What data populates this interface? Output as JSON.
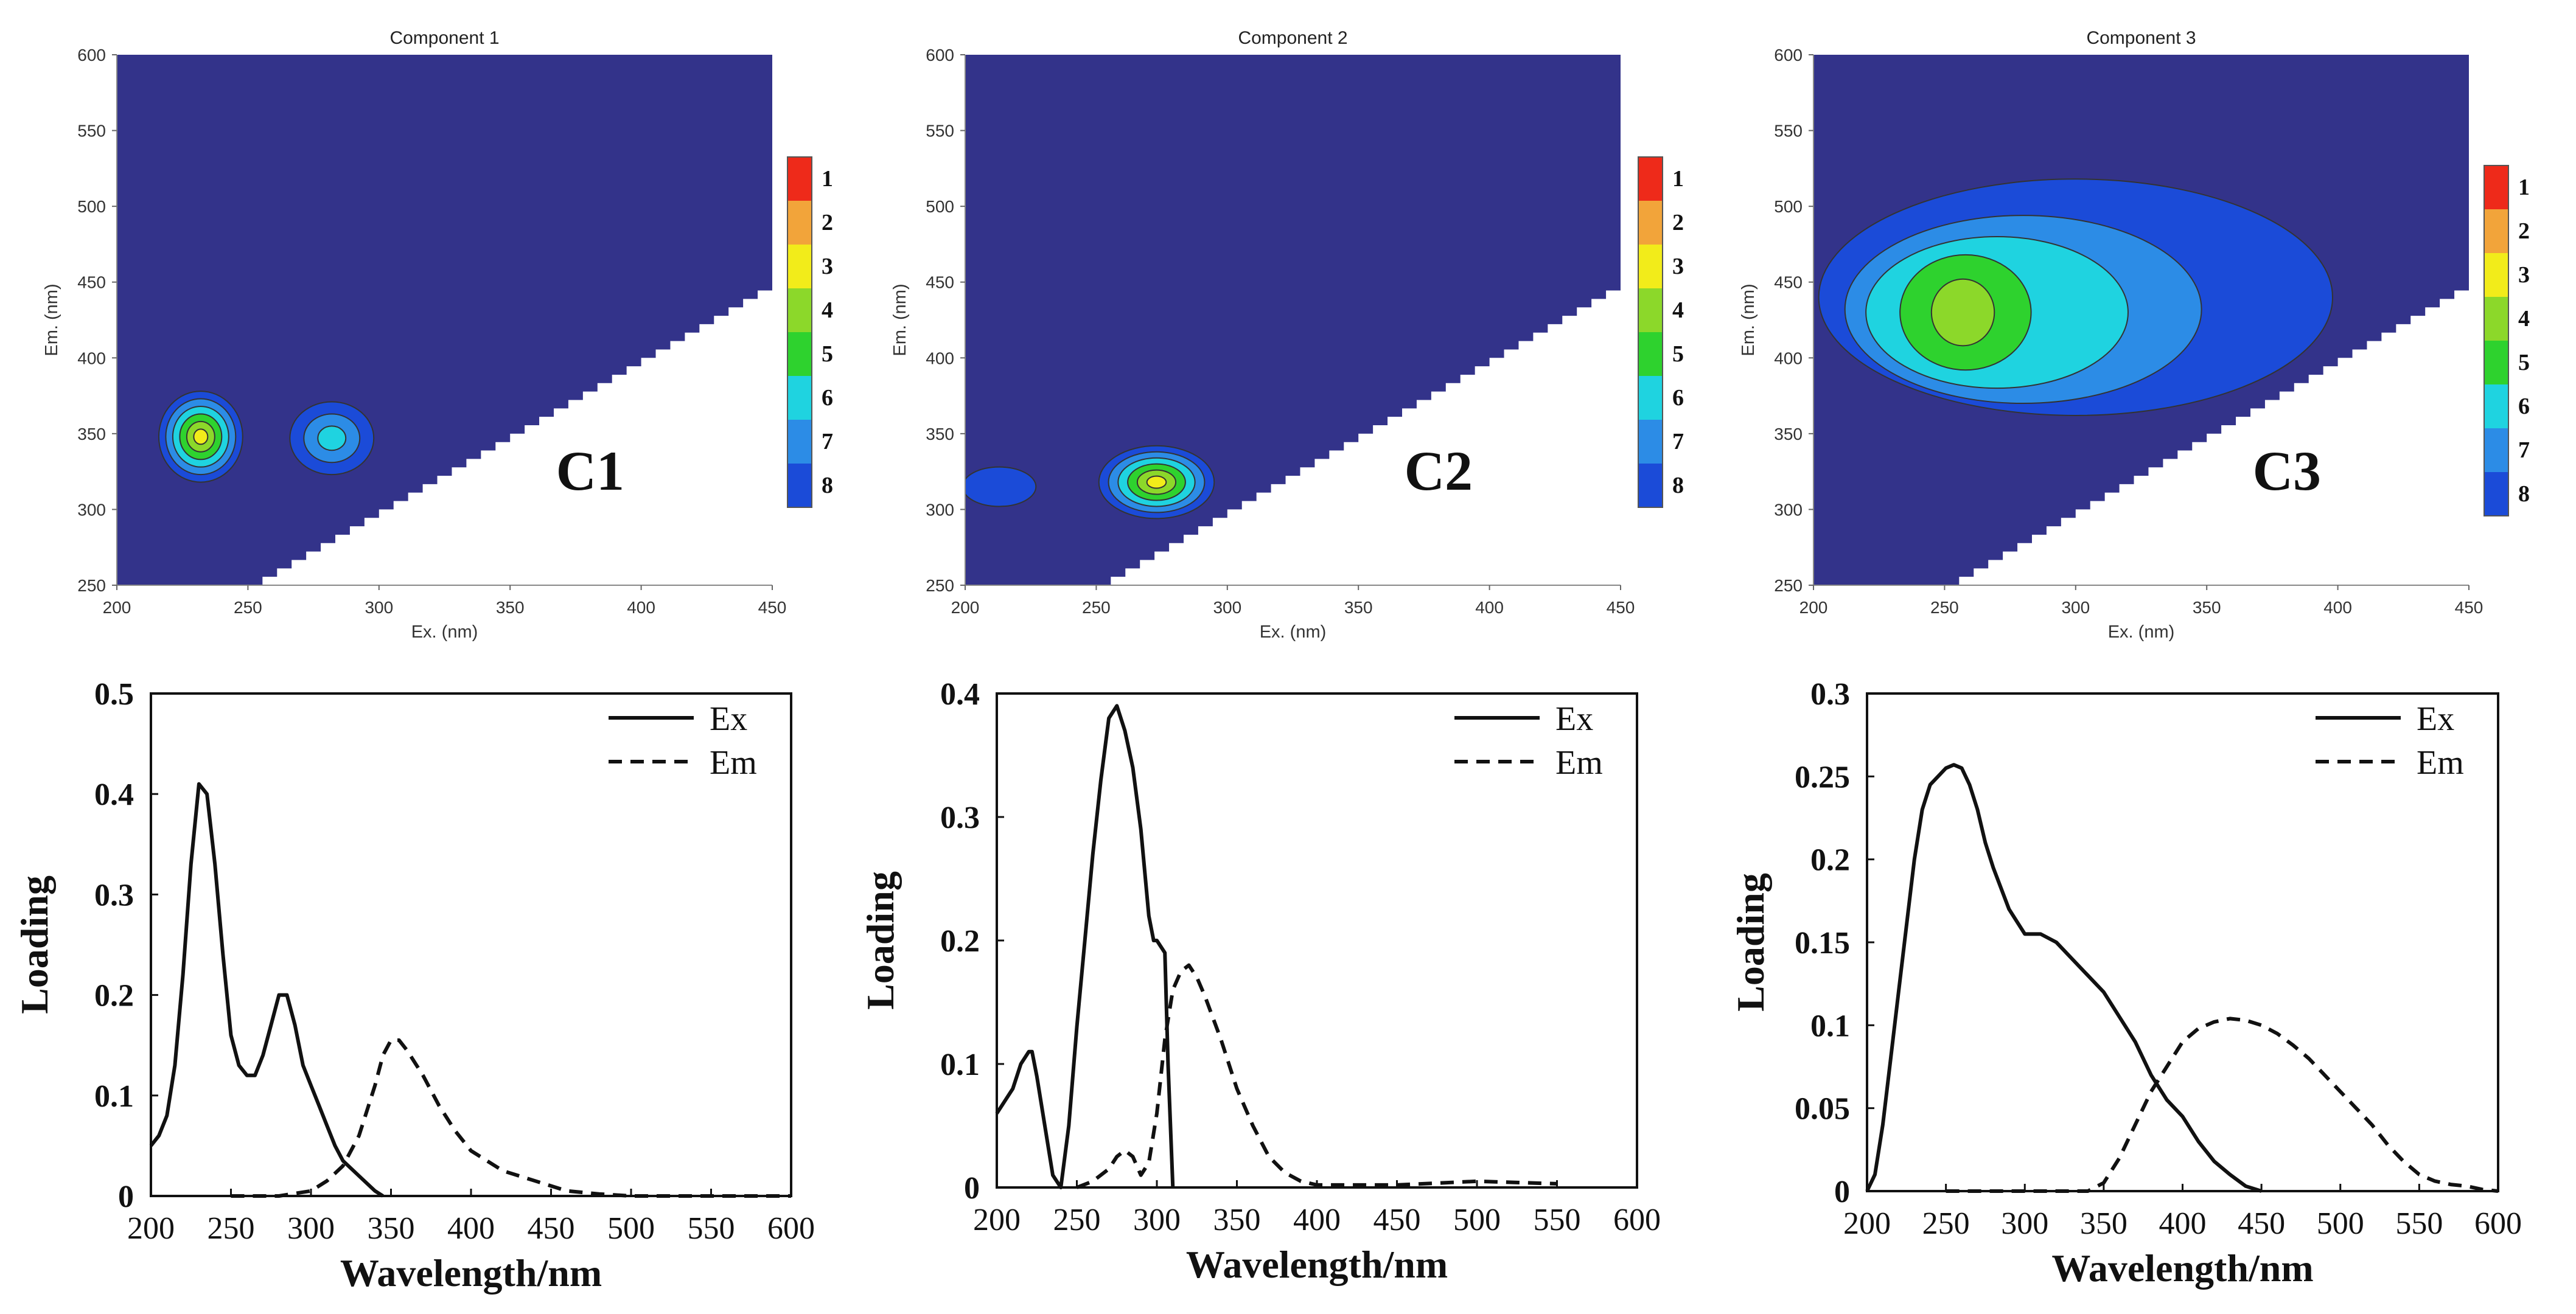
{
  "chart_data": [
    {
      "type": "heatmap",
      "title": "Component 1",
      "panel_label": "C1",
      "xlabel": "Ex. (nm)",
      "ylabel": "Em. (nm)",
      "xlim": [
        200,
        450
      ],
      "ylim": [
        250,
        600
      ],
      "xticks": [
        "200",
        "250",
        "300",
        "350",
        "400",
        "450"
      ],
      "yticks": [
        "250",
        "300",
        "350",
        "400",
        "450",
        "500",
        "550",
        "600"
      ],
      "background_color": "#33338A",
      "level_colors": [
        "#1B4BD8",
        "#2C8CE6",
        "#1FD3E0",
        "#2ED22E",
        "#8CD82A",
        "#F2EC1A",
        "#F2A43A",
        "#EE2A1A"
      ],
      "colorbar_labels": [
        "1",
        "2",
        "3",
        "4",
        "5",
        "6",
        "7",
        "8"
      ],
      "peaks": [
        {
          "ex": 232,
          "em": 348,
          "levels": 6,
          "rx": 16,
          "ry": 30
        },
        {
          "ex": 282,
          "em": 347,
          "levels": 3,
          "rx": 16,
          "ry": 24
        }
      ]
    },
    {
      "type": "heatmap",
      "title": "Component 2",
      "panel_label": "C2",
      "xlabel": "Ex. (nm)",
      "ylabel": "Em. (nm)",
      "xlim": [
        200,
        450
      ],
      "ylim": [
        250,
        600
      ],
      "xticks": [
        "200",
        "250",
        "300",
        "350",
        "400",
        "450"
      ],
      "yticks": [
        "250",
        "300",
        "350",
        "400",
        "450",
        "500",
        "550",
        "600"
      ],
      "background_color": "#33338A",
      "level_colors": [
        "#1B4BD8",
        "#2C8CE6",
        "#1FD3E0",
        "#2ED22E",
        "#8CD82A",
        "#F2EC1A",
        "#F2A43A",
        "#EE2A1A"
      ],
      "colorbar_labels": [
        "1",
        "2",
        "3",
        "4",
        "5",
        "6",
        "7",
        "8"
      ],
      "peaks": [
        {
          "ex": 273,
          "em": 318,
          "levels": 6,
          "rx": 22,
          "ry": 24
        },
        {
          "ex": 213,
          "em": 315,
          "levels": 1,
          "rx": 14,
          "ry": 13
        }
      ]
    },
    {
      "type": "heatmap",
      "title": "Component 3",
      "panel_label": "C3",
      "xlabel": "Ex. (nm)",
      "ylabel": "Em. (nm)",
      "xlim": [
        200,
        450
      ],
      "ylim": [
        250,
        600
      ],
      "xticks": [
        "200",
        "250",
        "300",
        "350",
        "400",
        "450"
      ],
      "yticks": [
        "250",
        "300",
        "350",
        "400",
        "450",
        "500",
        "550",
        "600"
      ],
      "background_color": "#33338A",
      "level_colors": [
        "#1B4BD8",
        "#2C8CE6",
        "#1FD3E0",
        "#2ED22E",
        "#8CD82A",
        "#F2EC1A",
        "#F2A43A",
        "#EE2A1A"
      ],
      "colorbar_labels": [
        "1",
        "2",
        "3",
        "4",
        "5",
        "6",
        "7",
        "8"
      ],
      "peaks": [
        {
          "ex": 300,
          "em": 440,
          "levels": 1,
          "rx": 98,
          "ry": 78
        },
        {
          "ex": 280,
          "em": 432,
          "levels": 1,
          "rx": 68,
          "ry": 62
        },
        {
          "ex": 270,
          "em": 430,
          "levels": 1,
          "rx": 50,
          "ry": 50
        },
        {
          "ex": 258,
          "em": 430,
          "levels": 1,
          "rx": 25,
          "ry": 38
        },
        {
          "ex": 257,
          "em": 430,
          "levels": 1,
          "rx": 12,
          "ry": 22
        }
      ]
    },
    {
      "type": "line",
      "xlabel": "Wavelength/nm",
      "ylabel": "Loading",
      "xlim": [
        200,
        600
      ],
      "ylim": [
        0,
        0.5
      ],
      "xticks": [
        "200",
        "250",
        "300",
        "350",
        "400",
        "450",
        "500",
        "550",
        "600"
      ],
      "yticks": [
        "0",
        "0.1",
        "0.2",
        "0.3",
        "0.4",
        "0.5"
      ],
      "legend_position": "top-right",
      "series": [
        {
          "name": "Ex",
          "style": "solid",
          "x": [
            200,
            205,
            210,
            215,
            220,
            225,
            230,
            235,
            240,
            245,
            250,
            255,
            260,
            265,
            270,
            275,
            280,
            285,
            290,
            295,
            300,
            305,
            310,
            315,
            320,
            330,
            340,
            345
          ],
          "y": [
            0.05,
            0.06,
            0.08,
            0.13,
            0.22,
            0.33,
            0.41,
            0.4,
            0.33,
            0.24,
            0.16,
            0.13,
            0.12,
            0.12,
            0.14,
            0.17,
            0.2,
            0.2,
            0.17,
            0.13,
            0.11,
            0.09,
            0.07,
            0.05,
            0.035,
            0.02,
            0.005,
            0
          ]
        },
        {
          "name": "Em",
          "style": "dashed",
          "x": [
            250,
            280,
            300,
            310,
            320,
            330,
            340,
            345,
            350,
            355,
            360,
            370,
            380,
            390,
            400,
            420,
            440,
            460,
            480,
            500,
            550,
            600
          ],
          "y": [
            0,
            0,
            0.005,
            0.015,
            0.03,
            0.06,
            0.11,
            0.14,
            0.155,
            0.155,
            0.145,
            0.12,
            0.09,
            0.065,
            0.045,
            0.025,
            0.015,
            0.005,
            0.002,
            0,
            0,
            0
          ]
        }
      ]
    },
    {
      "type": "line",
      "xlabel": "Wavelength/nm",
      "ylabel": "Loading",
      "xlim": [
        200,
        600
      ],
      "ylim": [
        0,
        0.4
      ],
      "xticks": [
        "200",
        "250",
        "300",
        "350",
        "400",
        "450",
        "500",
        "550",
        "600"
      ],
      "yticks": [
        "0",
        "0.1",
        "0.2",
        "0.3",
        "0.4"
      ],
      "legend_position": "top-right",
      "series": [
        {
          "name": "Ex",
          "style": "solid",
          "x": [
            200,
            210,
            215,
            220,
            222,
            225,
            230,
            235,
            240,
            245,
            250,
            255,
            260,
            265,
            270,
            275,
            280,
            285,
            290,
            295,
            298,
            300,
            305,
            307,
            310
          ],
          "y": [
            0.06,
            0.08,
            0.1,
            0.11,
            0.11,
            0.09,
            0.05,
            0.01,
            0,
            0.05,
            0.13,
            0.2,
            0.27,
            0.33,
            0.38,
            0.39,
            0.37,
            0.34,
            0.29,
            0.22,
            0.2,
            0.2,
            0.19,
            0.1,
            0
          ]
        },
        {
          "name": "Em",
          "style": "dashed",
          "x": [
            250,
            260,
            270,
            275,
            280,
            285,
            290,
            295,
            300,
            305,
            310,
            315,
            320,
            325,
            330,
            340,
            350,
            360,
            370,
            380,
            390,
            400,
            450,
            500,
            550
          ],
          "y": [
            0,
            0.005,
            0.015,
            0.025,
            0.03,
            0.025,
            0.01,
            0.02,
            0.06,
            0.12,
            0.16,
            0.175,
            0.18,
            0.17,
            0.155,
            0.12,
            0.08,
            0.05,
            0.025,
            0.012,
            0.005,
            0.002,
            0.002,
            0.005,
            0.003
          ]
        }
      ]
    },
    {
      "type": "line",
      "xlabel": "Wavelength/nm",
      "ylabel": "Loading",
      "xlim": [
        200,
        600
      ],
      "ylim": [
        0,
        0.3
      ],
      "xticks": [
        "200",
        "250",
        "300",
        "350",
        "400",
        "450",
        "500",
        "550",
        "600"
      ],
      "yticks": [
        "0",
        "0.05",
        "0.1",
        "0.15",
        "0.2",
        "0.25",
        "0.3"
      ],
      "legend_position": "top-right",
      "series": [
        {
          "name": "Ex",
          "style": "solid",
          "x": [
            200,
            205,
            210,
            215,
            220,
            225,
            230,
            235,
            240,
            245,
            250,
            255,
            260,
            265,
            270,
            275,
            280,
            290,
            300,
            310,
            320,
            330,
            340,
            350,
            360,
            370,
            380,
            390,
            400,
            410,
            420,
            430,
            440,
            450
          ],
          "y": [
            0,
            0.01,
            0.04,
            0.08,
            0.12,
            0.16,
            0.2,
            0.23,
            0.245,
            0.25,
            0.255,
            0.257,
            0.255,
            0.245,
            0.23,
            0.21,
            0.195,
            0.17,
            0.155,
            0.155,
            0.15,
            0.14,
            0.13,
            0.12,
            0.105,
            0.09,
            0.07,
            0.055,
            0.045,
            0.03,
            0.018,
            0.01,
            0.003,
            0
          ]
        },
        {
          "name": "Em",
          "style": "dashed",
          "x": [
            250,
            300,
            340,
            350,
            360,
            370,
            380,
            390,
            400,
            410,
            420,
            430,
            440,
            450,
            460,
            470,
            480,
            490,
            500,
            510,
            520,
            530,
            540,
            550,
            560,
            570,
            580,
            590,
            600
          ],
          "y": [
            0,
            0,
            0,
            0.005,
            0.02,
            0.04,
            0.06,
            0.075,
            0.09,
            0.098,
            0.102,
            0.104,
            0.103,
            0.1,
            0.095,
            0.088,
            0.08,
            0.07,
            0.06,
            0.05,
            0.04,
            0.028,
            0.018,
            0.01,
            0.006,
            0.004,
            0.003,
            0.001,
            0
          ]
        }
      ]
    }
  ]
}
